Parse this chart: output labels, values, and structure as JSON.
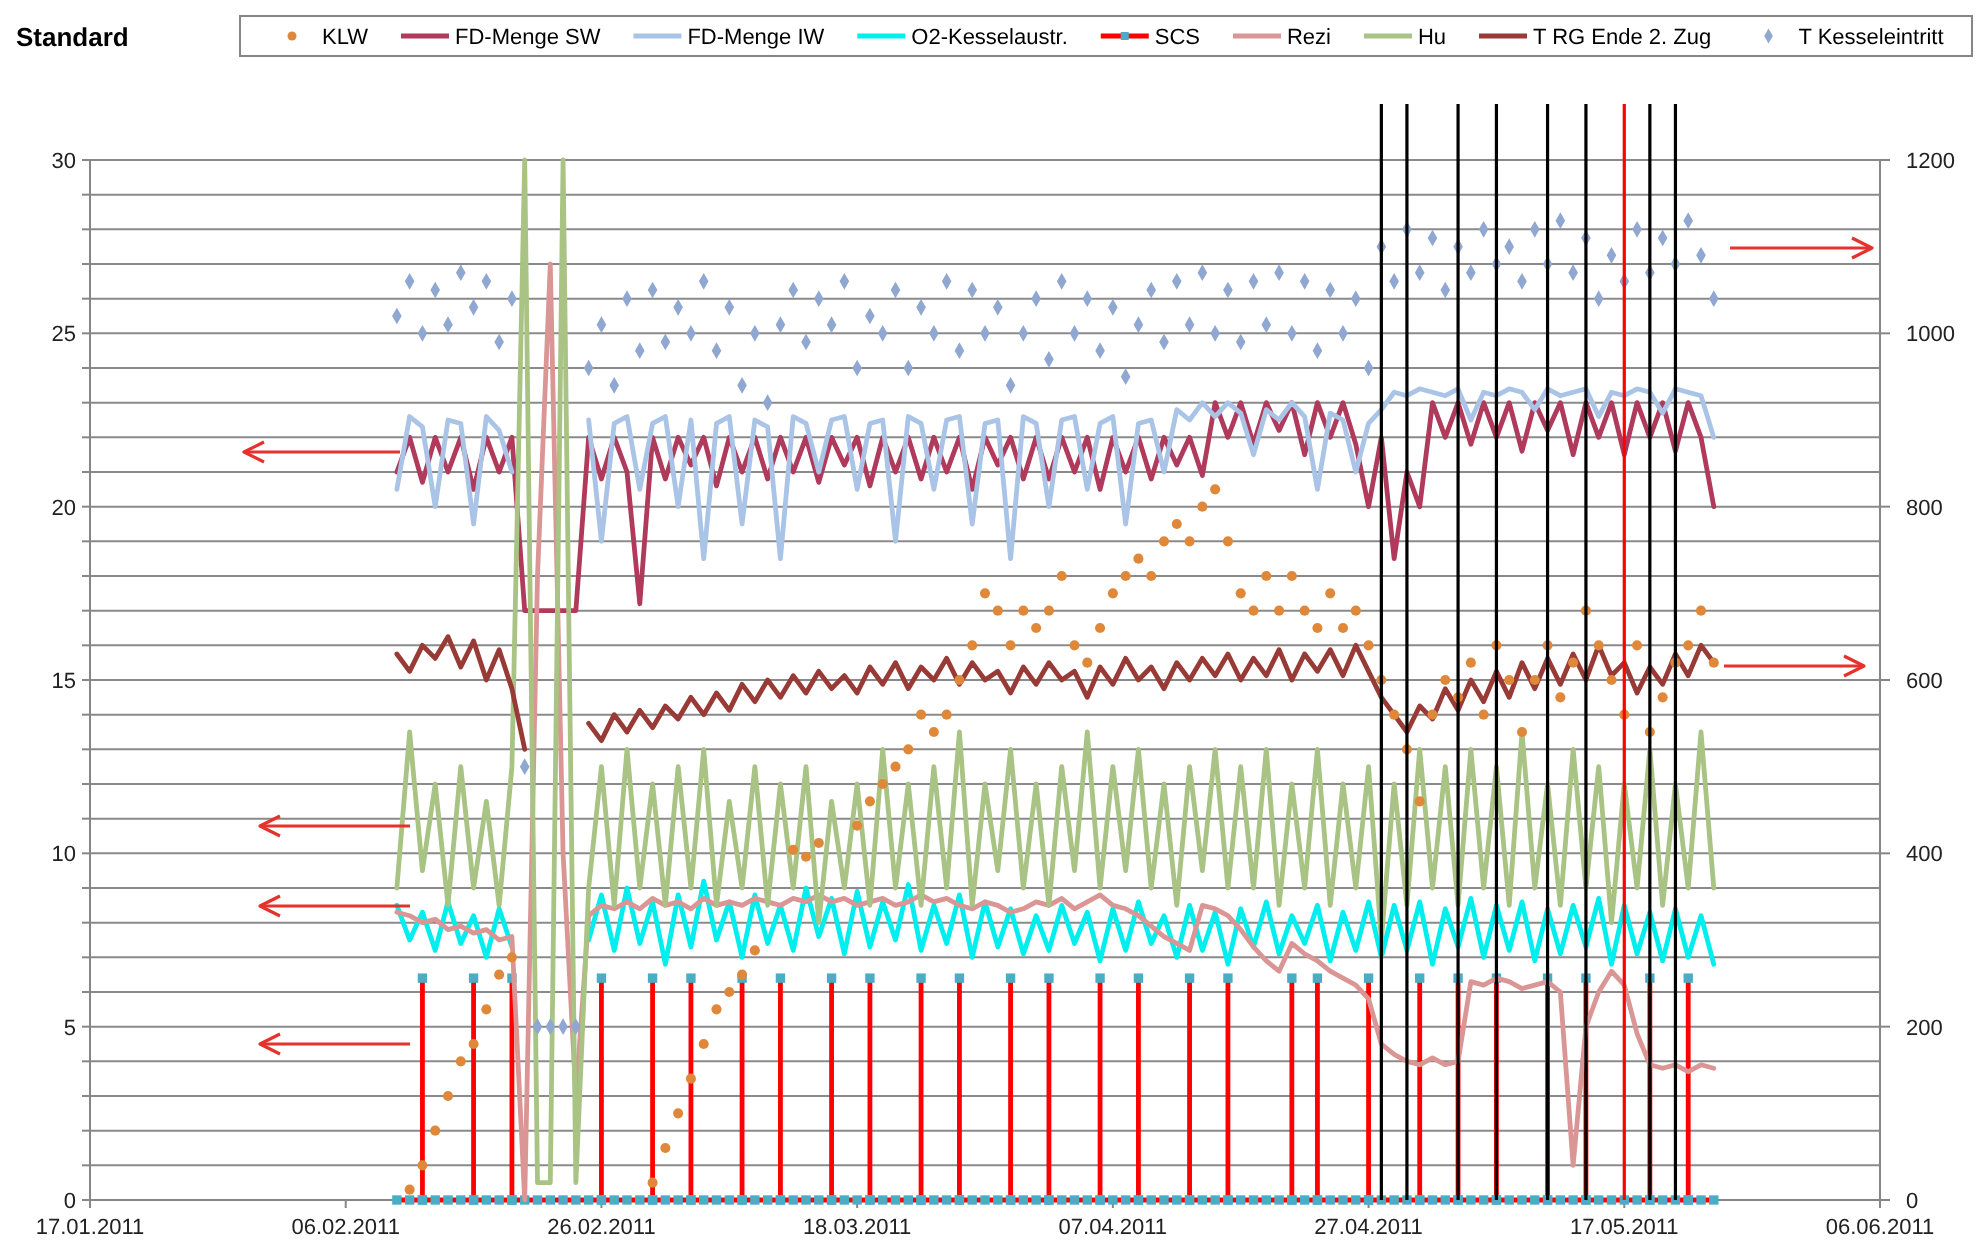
{
  "chart_data": {
    "type": "line",
    "title": "Standard",
    "x": [
      "2011-02-10",
      "2011-02-11",
      "2011-02-12",
      "2011-02-13",
      "2011-02-14",
      "2011-02-15",
      "2011-02-16",
      "2011-02-17",
      "2011-02-18",
      "2011-02-19",
      "2011-02-20",
      "2011-02-21",
      "2011-02-22",
      "2011-02-23",
      "2011-02-24",
      "2011-02-25",
      "2011-02-26",
      "2011-02-27",
      "2011-02-28",
      "2011-03-01",
      "2011-03-02",
      "2011-03-03",
      "2011-03-04",
      "2011-03-05",
      "2011-03-06",
      "2011-03-07",
      "2011-03-08",
      "2011-03-09",
      "2011-03-10",
      "2011-03-11",
      "2011-03-12",
      "2011-03-13",
      "2011-03-14",
      "2011-03-15",
      "2011-03-16",
      "2011-03-17",
      "2011-03-18",
      "2011-03-19",
      "2011-03-20",
      "2011-03-21",
      "2011-03-22",
      "2011-03-23",
      "2011-03-24",
      "2011-03-25",
      "2011-03-26",
      "2011-03-27",
      "2011-03-28",
      "2011-03-29",
      "2011-03-30",
      "2011-03-31",
      "2011-04-01",
      "2011-04-02",
      "2011-04-03",
      "2011-04-04",
      "2011-04-05",
      "2011-04-06",
      "2011-04-07",
      "2011-04-08",
      "2011-04-09",
      "2011-04-10",
      "2011-04-11",
      "2011-04-12",
      "2011-04-13",
      "2011-04-14",
      "2011-04-15",
      "2011-04-16",
      "2011-04-17",
      "2011-04-18",
      "2011-04-19",
      "2011-04-20",
      "2011-04-21",
      "2011-04-22",
      "2011-04-23",
      "2011-04-24",
      "2011-04-25",
      "2011-04-26",
      "2011-04-27",
      "2011-04-28",
      "2011-04-29",
      "2011-04-30",
      "2011-05-01",
      "2011-05-02",
      "2011-05-03",
      "2011-05-04",
      "2011-05-05",
      "2011-05-06",
      "2011-05-07",
      "2011-05-08",
      "2011-05-09",
      "2011-05-10",
      "2011-05-11",
      "2011-05-12",
      "2011-05-13",
      "2011-05-14",
      "2011-05-15",
      "2011-05-16",
      "2011-05-17",
      "2011-05-18",
      "2011-05-19",
      "2011-05-20",
      "2011-05-21",
      "2011-05-22",
      "2011-05-23",
      "2011-05-24"
    ],
    "xlim": [
      "2011-01-17",
      "2011-06-06"
    ],
    "xticks": [
      {
        "value": "2011-01-17",
        "label": "17.01.2011"
      },
      {
        "value": "2011-02-06",
        "label": "06.02.2011"
      },
      {
        "value": "2011-02-26",
        "label": "26.02.2011"
      },
      {
        "value": "2011-03-18",
        "label": "18.03.2011"
      },
      {
        "value": "2011-04-07",
        "label": "07.04.2011"
      },
      {
        "value": "2011-04-27",
        "label": "27.04.2011"
      },
      {
        "value": "2011-05-17",
        "label": "17.05.2011"
      },
      {
        "value": "2011-06-06",
        "label": "06.06.2011"
      }
    ],
    "ylim": [
      0,
      30
    ],
    "yticks": [
      0,
      {
        "value": 1,
        "label": null
      },
      {
        "value": 2,
        "label": null
      },
      {
        "value": 3,
        "label": null
      },
      {
        "value": 4,
        "label": null
      },
      5,
      {
        "value": 6,
        "label": null
      },
      {
        "value": 7,
        "label": null
      },
      {
        "value": 8,
        "label": null
      },
      {
        "value": 9,
        "label": null
      },
      10,
      {
        "value": 11,
        "label": null
      },
      {
        "value": 12,
        "label": null
      },
      {
        "value": 13,
        "label": null
      },
      {
        "value": 14,
        "label": null
      },
      15,
      {
        "value": 16,
        "label": null
      },
      {
        "value": 17,
        "label": null
      },
      {
        "value": 18,
        "label": null
      },
      {
        "value": 19,
        "label": null
      },
      20,
      {
        "value": 21,
        "label": null
      },
      {
        "value": 22,
        "label": null
      },
      {
        "value": 23,
        "label": null
      },
      {
        "value": 24,
        "label": null
      },
      25,
      {
        "value": 26,
        "label": null
      },
      {
        "value": 27,
        "label": null
      },
      {
        "value": 28,
        "label": null
      },
      {
        "value": 29,
        "label": null
      },
      30
    ],
    "y2lim": [
      0,
      1200
    ],
    "y2ticks": [
      0,
      200,
      400,
      600,
      800,
      1000,
      1200
    ],
    "grid": "y",
    "legend": "top",
    "ref_lines": [
      {
        "axis": "x",
        "value": "2011-04-28",
        "color": "#000000"
      },
      {
        "axis": "x",
        "value": "2011-04-30",
        "color": "#000000"
      },
      {
        "axis": "x",
        "value": "2011-05-04",
        "color": "#000000"
      },
      {
        "axis": "x",
        "value": "2011-05-07",
        "color": "#000000"
      },
      {
        "axis": "x",
        "value": "2011-05-11",
        "color": "#000000"
      },
      {
        "axis": "x",
        "value": "2011-05-14",
        "color": "#000000"
      },
      {
        "axis": "x",
        "value": "2011-05-17",
        "color": "#ff0000"
      },
      {
        "axis": "x",
        "value": "2011-05-19",
        "color": "#000000"
      },
      {
        "axis": "x",
        "value": "2011-05-21",
        "color": "#000000"
      }
    ],
    "series": [
      {
        "name": "KLW",
        "type": "scatter",
        "marker": "circle",
        "color": "#e0883a",
        "values": [
          null,
          0.3,
          1,
          2,
          3,
          4,
          4.5,
          5.5,
          6.5,
          7,
          null,
          null,
          null,
          null,
          null,
          null,
          null,
          null,
          null,
          null,
          0.5,
          1.5,
          2.5,
          3.5,
          4.5,
          5.5,
          6,
          6.5,
          7.2,
          null,
          null,
          10.1,
          9.9,
          10.3,
          null,
          null,
          10.8,
          11.5,
          12,
          12.5,
          13,
          14,
          13.5,
          14,
          15,
          16,
          17.5,
          17,
          16,
          17,
          16.5,
          17,
          18,
          16,
          15.5,
          16.5,
          17.5,
          18,
          18.5,
          18,
          19,
          19.5,
          19,
          20,
          20.5,
          19,
          17.5,
          17,
          18,
          17,
          18,
          17,
          16.5,
          17.5,
          16.5,
          17,
          16,
          15,
          14,
          13,
          11.5,
          14,
          15,
          14.5,
          15.5,
          14,
          16,
          15,
          13.5,
          15,
          16,
          14.5,
          15.5,
          17,
          16,
          15,
          14,
          16,
          13.5,
          14.5,
          15.5,
          16,
          17,
          15.5
        ]
      },
      {
        "name": "FD-Menge SW",
        "color": "#b03a5b",
        "values": [
          21,
          22,
          20.7,
          22,
          21,
          22,
          20.5,
          22,
          21,
          22,
          17,
          17,
          17,
          17,
          17,
          22,
          20.8,
          22,
          21,
          17.2,
          22,
          20.8,
          22,
          21.2,
          22,
          20.6,
          22,
          21,
          22,
          20.8,
          22,
          21,
          22,
          20.7,
          22,
          21.2,
          22,
          20.6,
          22,
          21,
          22,
          20.8,
          22,
          21,
          22,
          20.5,
          22,
          21.2,
          22,
          20.8,
          22,
          20.8,
          22,
          21,
          22,
          20.5,
          22,
          21,
          22,
          20.8,
          22,
          21.2,
          22,
          20.9,
          23,
          22,
          23,
          21.8,
          23,
          22.2,
          23,
          21.5,
          23,
          22,
          23,
          21.8,
          20,
          22,
          18.5,
          21,
          20,
          23,
          22,
          23,
          21.8,
          23,
          22,
          23,
          21.6,
          23,
          22.2,
          23,
          21.5,
          23,
          22,
          23,
          21.5,
          23,
          22,
          23,
          21.6,
          23,
          22,
          20
        ]
      },
      {
        "name": "FD-Menge IW",
        "color": "#a9c4e6",
        "values": [
          20.5,
          22.6,
          22.3,
          20,
          22.5,
          22.4,
          19.5,
          22.6,
          22.2,
          21,
          null,
          null,
          null,
          null,
          null,
          22.5,
          19,
          22.4,
          22.6,
          20.5,
          22.4,
          22.6,
          20,
          22.5,
          18.5,
          22.4,
          22.6,
          19.5,
          22.5,
          22.3,
          18.5,
          22.6,
          22.4,
          21,
          22.5,
          22.6,
          20.5,
          22.4,
          22.5,
          19,
          22.6,
          22.4,
          20.5,
          22.5,
          22.6,
          19.5,
          22.4,
          22.5,
          18.5,
          22.6,
          22.4,
          20,
          22.5,
          22.6,
          20.5,
          22.4,
          22.6,
          19.5,
          22.4,
          22.5,
          21,
          22.8,
          22.5,
          23,
          22.6,
          23,
          22.7,
          21.5,
          22.8,
          22.5,
          23,
          22.6,
          20.5,
          22.7,
          22.5,
          21,
          22.4,
          22.8,
          23.3,
          23.2,
          23.4,
          23.3,
          23.2,
          23.4,
          22.5,
          23.3,
          23.2,
          23.4,
          23.3,
          22.8,
          23.4,
          23.2,
          23.3,
          23.4,
          22.6,
          23.3,
          23.2,
          23.4,
          23.3,
          22.7,
          23.4,
          23.3,
          23.2,
          22
        ]
      },
      {
        "name": "O2-Kesselaustr.",
        "color": "#00eeee",
        "values": [
          8.5,
          7.5,
          8.3,
          7.2,
          8.6,
          7.4,
          8.2,
          7,
          8.4,
          7.3,
          null,
          null,
          null,
          null,
          null,
          7.5,
          8.8,
          7.2,
          9,
          7.4,
          8.6,
          6.8,
          8.8,
          7.3,
          9.2,
          7.5,
          8.6,
          7,
          8.8,
          7.4,
          8.5,
          7.2,
          9,
          7.6,
          8.7,
          7.1,
          8.9,
          7.3,
          8.6,
          7.5,
          9.1,
          7.2,
          8.5,
          7.4,
          8.8,
          7,
          8.6,
          7.3,
          8.4,
          7.1,
          8.2,
          7.2,
          8.5,
          7.4,
          8.3,
          6.9,
          8.4,
          7.2,
          8.6,
          7.4,
          8.2,
          7,
          8.5,
          7.2,
          8.3,
          6.8,
          8.4,
          7.3,
          8.6,
          7.1,
          8.2,
          7.4,
          8.5,
          6.9,
          8.3,
          7.2,
          8.6,
          7,
          8.5,
          7.2,
          8.6,
          6.8,
          8.4,
          7.3,
          8.7,
          7,
          8.5,
          7.2,
          8.6,
          6.9,
          8.4,
          7.1,
          8.5,
          7.3,
          8.7,
          6.8,
          8.5,
          7.1,
          8.3,
          6.9,
          8.4,
          7,
          8.2,
          6.8
        ]
      },
      {
        "name": "SCS",
        "color": "#ff0000",
        "marker": "square",
        "x": [
          "2011-02-10",
          "2011-02-11",
          "2011-02-12",
          "2011-02-12",
          "2011-02-12",
          "2011-02-13",
          "2011-02-14",
          "2011-02-15",
          "2011-02-16",
          "2011-02-16",
          "2011-02-16",
          "2011-02-17",
          "2011-02-18",
          "2011-02-19",
          "2011-02-19",
          "2011-02-19",
          "2011-02-20",
          "2011-02-21",
          "2011-02-22",
          "2011-02-23",
          "2011-02-24",
          "2011-02-25",
          "2011-02-26",
          "2011-02-26",
          "2011-02-26",
          "2011-02-27",
          "2011-02-28",
          "2011-03-01",
          "2011-03-02",
          "2011-03-02",
          "2011-03-02",
          "2011-03-03",
          "2011-03-04",
          "2011-03-05",
          "2011-03-05",
          "2011-03-05",
          "2011-03-06",
          "2011-03-07",
          "2011-03-08",
          "2011-03-09",
          "2011-03-09",
          "2011-03-09",
          "2011-03-10",
          "2011-03-11",
          "2011-03-12",
          "2011-03-12",
          "2011-03-12",
          "2011-03-13",
          "2011-03-14",
          "2011-03-15",
          "2011-03-16",
          "2011-03-16",
          "2011-03-16",
          "2011-03-17",
          "2011-03-18",
          "2011-03-19",
          "2011-03-19",
          "2011-03-19",
          "2011-03-20",
          "2011-03-21",
          "2011-03-22",
          "2011-03-23",
          "2011-03-23",
          "2011-03-23",
          "2011-03-24",
          "2011-03-25",
          "2011-03-26",
          "2011-03-26",
          "2011-03-26",
          "2011-03-27",
          "2011-03-28",
          "2011-03-29",
          "2011-03-30",
          "2011-03-30",
          "2011-03-30",
          "2011-03-31",
          "2011-04-01",
          "2011-04-02",
          "2011-04-02",
          "2011-04-02",
          "2011-04-03",
          "2011-04-04",
          "2011-04-05",
          "2011-04-06",
          "2011-04-06",
          "2011-04-06",
          "2011-04-07",
          "2011-04-08",
          "2011-04-09",
          "2011-04-09",
          "2011-04-09",
          "2011-04-10",
          "2011-04-11",
          "2011-04-12",
          "2011-04-13",
          "2011-04-13",
          "2011-04-13",
          "2011-04-14",
          "2011-04-15",
          "2011-04-16",
          "2011-04-16",
          "2011-04-16",
          "2011-04-17",
          "2011-04-18",
          "2011-04-19",
          "2011-04-20",
          "2011-04-21",
          "2011-04-21",
          "2011-04-21",
          "2011-04-22",
          "2011-04-23",
          "2011-04-23",
          "2011-04-23",
          "2011-04-24",
          "2011-04-25",
          "2011-04-26",
          "2011-04-27",
          "2011-04-27",
          "2011-04-27",
          "2011-04-28",
          "2011-04-29",
          "2011-04-30",
          "2011-05-01",
          "2011-05-01",
          "2011-05-01",
          "2011-05-02",
          "2011-05-03",
          "2011-05-04",
          "2011-05-04",
          "2011-05-04",
          "2011-05-05",
          "2011-05-06",
          "2011-05-07",
          "2011-05-07",
          "2011-05-07",
          "2011-05-08",
          "2011-05-09",
          "2011-05-10",
          "2011-05-11",
          "2011-05-11",
          "2011-05-11",
          "2011-05-12",
          "2011-05-13",
          "2011-05-14",
          "2011-05-14",
          "2011-05-14",
          "2011-05-15",
          "2011-05-16",
          "2011-05-17",
          "2011-05-18",
          "2011-05-19",
          "2011-05-19",
          "2011-05-19",
          "2011-05-20",
          "2011-05-21",
          "2011-05-22",
          "2011-05-22",
          "2011-05-22",
          "2011-05-23",
          "2011-05-24"
        ],
        "values": [
          0,
          0,
          0,
          6.4,
          0,
          0,
          0,
          0,
          0,
          6.4,
          0,
          0,
          0,
          0,
          6.4,
          0,
          0,
          0,
          0,
          0,
          0,
          0,
          0,
          6.4,
          0,
          0,
          0,
          0,
          0,
          6.4,
          0,
          0,
          0,
          0,
          6.4,
          0,
          0,
          0,
          0,
          0,
          6.4,
          0,
          0,
          0,
          0,
          6.4,
          0,
          0,
          0,
          0,
          0,
          6.4,
          0,
          0,
          0,
          0,
          6.4,
          0,
          0,
          0,
          0,
          0,
          6.4,
          0,
          0,
          0,
          0,
          6.4,
          0,
          0,
          0,
          0,
          0,
          6.4,
          0,
          0,
          0,
          0,
          6.4,
          0,
          0,
          0,
          0,
          0,
          6.4,
          0,
          0,
          0,
          0,
          6.4,
          0,
          0,
          0,
          0,
          0,
          6.4,
          0,
          0,
          0,
          0,
          6.4,
          0,
          0,
          0,
          0,
          0,
          0,
          6.4,
          0,
          0,
          0,
          6.4,
          0,
          0,
          0,
          0,
          0,
          6.4,
          0,
          0,
          0,
          0,
          0,
          6.4,
          0,
          0,
          0,
          0,
          6.4,
          0,
          0,
          0,
          0,
          6.4,
          0,
          0,
          0,
          0,
          0,
          6.4,
          0,
          0,
          0,
          0,
          6.4,
          0,
          0,
          0,
          0,
          0,
          0,
          6.4,
          0,
          0,
          0,
          0,
          6.4,
          0,
          0,
          0
        ],
        "colors": [
          "#4bacc6",
          "#4bacc6",
          "#4bacc6",
          "#4bacc6",
          "#4bacc6",
          "#4bacc6",
          "#4bacc6",
          "#4bacc6",
          "#4bacc6",
          "#4bacc6",
          "#4bacc6",
          "#4bacc6",
          "#4bacc6",
          "#4bacc6",
          "#4bacc6",
          "#4bacc6",
          "#4bacc6",
          "#4bacc6",
          "#4bacc6",
          "#4bacc6",
          "#4bacc6",
          "#4bacc6",
          "#4bacc6",
          "#4bacc6",
          "#4bacc6",
          "#4bacc6",
          "#4bacc6",
          "#4bacc6",
          "#4bacc6",
          "#4bacc6",
          "#4bacc6",
          "#4bacc6",
          "#4bacc6",
          "#4bacc6",
          "#4bacc6",
          "#4bacc6",
          "#4bacc6",
          "#4bacc6",
          "#4bacc6",
          "#4bacc6",
          "#4bacc6",
          "#4bacc6",
          "#4bacc6",
          "#4bacc6",
          "#4bacc6",
          "#4bacc6",
          "#4bacc6",
          "#4bacc6",
          "#4bacc6",
          "#4bacc6",
          "#4bacc6",
          "#4bacc6",
          "#4bacc6",
          "#4bacc6",
          "#4bacc6",
          "#4bacc6",
          "#4bacc6",
          "#4bacc6",
          "#4bacc6",
          "#4bacc6",
          "#4bacc6",
          "#4bacc6",
          "#4bacc6",
          "#4bacc6",
          "#4bacc6",
          "#4bacc6",
          "#4bacc6",
          "#4bacc6",
          "#4bacc6",
          "#4bacc6",
          "#4bacc6",
          "#4bacc6",
          "#4bacc6",
          "#4bacc6",
          "#4bacc6",
          "#4bacc6",
          "#4bacc6",
          "#4bacc6",
          "#4bacc6",
          "#4bacc6",
          "#4bacc6",
          "#4bacc6",
          "#4bacc6",
          "#4bacc6",
          "#4bacc6",
          "#4bacc6",
          "#4bacc6",
          "#4bacc6",
          "#4bacc6",
          "#4bacc6",
          "#4bacc6",
          "#4bacc6",
          "#4bacc6",
          "#4bacc6",
          "#4bacc6",
          "#4bacc6",
          "#4bacc6",
          "#4bacc6",
          "#4bacc6",
          "#4bacc6",
          "#4bacc6",
          "#4bacc6",
          "#4bacc6",
          "#4bacc6",
          "#4bacc6",
          "#4bacc6",
          "#4bacc6",
          "#4bacc6",
          "#4bacc6",
          "#4bacc6",
          "#4bacc6",
          "#4bacc6",
          "#4bacc6",
          "#4bacc6",
          "#4bacc6",
          "#4bacc6",
          "#4bacc6",
          "#4bacc6",
          "#4bacc6",
          "#4bacc6",
          "#4bacc6",
          "#4bacc6",
          "#4bacc6",
          "#4bacc6",
          "#4bacc6",
          "#4bacc6",
          "#4bacc6",
          "#4bacc6",
          "#4bacc6",
          "#4bacc6",
          "#4bacc6",
          "#4bacc6",
          "#4bacc6",
          "#4bacc6",
          "#4bacc6",
          "#4bacc6",
          "#4bacc6",
          "#4bacc6",
          "#4bacc6",
          "#4bacc6",
          "#4bacc6",
          "#4bacc6",
          "#4bacc6",
          "#4bacc6",
          "#4bacc6",
          "#4bacc6",
          "#4bacc6",
          "#4bacc6",
          "#4bacc6",
          "#4bacc6",
          "#4bacc6",
          "#4bacc6",
          "#4bacc6",
          "#4bacc6",
          "#4bacc6",
          "#4bacc6",
          "#4bacc6",
          "#4bacc6",
          "#4bacc6",
          "#4bacc6"
        ]
      },
      {
        "name": "Rezi",
        "color": "#d99694",
        "values": [
          8.3,
          8.2,
          8,
          8.1,
          7.8,
          7.9,
          7.7,
          7.8,
          7.5,
          7.6,
          0,
          18,
          27,
          10,
          3,
          8.2,
          8.5,
          8.4,
          8.6,
          8.4,
          8.7,
          8.5,
          8.6,
          8.4,
          8.7,
          8.5,
          8.6,
          8.5,
          8.7,
          8.6,
          8.5,
          8.7,
          8.6,
          8.8,
          8.6,
          8.7,
          8.5,
          8.6,
          8.7,
          8.5,
          8.6,
          8.8,
          8.6,
          8.7,
          8.5,
          8.4,
          8.6,
          8.5,
          8.3,
          8.4,
          8.6,
          8.5,
          8.7,
          8.4,
          8.6,
          8.8,
          8.5,
          8.4,
          8.2,
          7.9,
          7.6,
          7.4,
          7.2,
          8.5,
          8.4,
          8.2,
          7.8,
          7.3,
          6.9,
          6.6,
          7.4,
          7.1,
          6.9,
          6.6,
          6.4,
          6.2,
          5.8,
          4.5,
          4.2,
          4,
          3.9,
          4.1,
          3.9,
          4,
          6.3,
          6.2,
          6.4,
          6.3,
          6.1,
          6.2,
          6.3,
          6,
          1,
          5,
          6,
          6.6,
          6.2,
          4.8,
          3.9,
          3.8,
          3.9,
          3.7,
          3.9,
          3.8
        ]
      },
      {
        "name": "Hu",
        "color": "#a8c384",
        "values": [
          9,
          13.5,
          9.5,
          12,
          8.5,
          12.5,
          9,
          11.5,
          8.5,
          12.5,
          30,
          0.5,
          0.5,
          30,
          0.5,
          9,
          12.5,
          8.5,
          13,
          9,
          12,
          8.5,
          12.5,
          9,
          13,
          8.5,
          11.5,
          9,
          12.5,
          8.5,
          12,
          9,
          12.5,
          8,
          11.5,
          9,
          12,
          8.5,
          13,
          9,
          12,
          8.5,
          12.5,
          9,
          13.5,
          8.5,
          12,
          9.5,
          13,
          9,
          12,
          8.5,
          12.5,
          9.5,
          13.5,
          9,
          12.5,
          9.5,
          13,
          9,
          12,
          8.5,
          12.5,
          9.5,
          13,
          9,
          12.5,
          9,
          13,
          8.5,
          12,
          9,
          13,
          8.5,
          12,
          9,
          12.5,
          7.5,
          12,
          8.5,
          13,
          9,
          12.5,
          8.5,
          13,
          9,
          12.5,
          8.5,
          13.5,
          9,
          12,
          8.5,
          13,
          9,
          12.5,
          8,
          12,
          9,
          13,
          8.5,
          12,
          9,
          13.5,
          9
        ]
      },
      {
        "name": "T RG Ende 2. Zug",
        "color": "#983a36",
        "axis": "y2",
        "values": [
          630,
          610,
          640,
          625,
          650,
          615,
          645,
          600,
          635,
          590,
          520,
          null,
          null,
          null,
          null,
          550,
          530,
          560,
          540,
          565,
          545,
          570,
          555,
          580,
          560,
          585,
          565,
          595,
          575,
          600,
          580,
          605,
          585,
          610,
          590,
          605,
          585,
          615,
          595,
          620,
          590,
          615,
          600,
          625,
          595,
          620,
          600,
          610,
          585,
          615,
          595,
          620,
          600,
          610,
          580,
          615,
          595,
          625,
          600,
          615,
          590,
          620,
          600,
          625,
          605,
          630,
          600,
          625,
          605,
          635,
          600,
          630,
          610,
          635,
          605,
          640,
          610,
          580,
          560,
          540,
          570,
          555,
          590,
          565,
          600,
          575,
          610,
          580,
          620,
          590,
          625,
          595,
          630,
          600,
          640,
          605,
          620,
          585,
          615,
          595,
          630,
          605,
          640,
          620
        ]
      },
      {
        "name": "T Kesseleintritt",
        "type": "scatter",
        "marker": "diamond",
        "color": "#8fa7d1",
        "axis": "y2",
        "values": [
          1020,
          1060,
          1000,
          1050,
          1010,
          1070,
          1030,
          1060,
          990,
          1040,
          500,
          200,
          200,
          200,
          200,
          960,
          1010,
          940,
          1040,
          980,
          1050,
          990,
          1030,
          1000,
          1060,
          980,
          1030,
          940,
          1000,
          920,
          1010,
          1050,
          990,
          1040,
          1010,
          1060,
          960,
          1020,
          1000,
          1050,
          960,
          1030,
          1000,
          1060,
          980,
          1050,
          1000,
          1030,
          940,
          1000,
          1040,
          970,
          1060,
          1000,
          1040,
          980,
          1030,
          950,
          1010,
          1050,
          990,
          1060,
          1010,
          1070,
          1000,
          1050,
          990,
          1060,
          1010,
          1070,
          1000,
          1060,
          980,
          1050,
          1000,
          1040,
          960,
          1100,
          1060,
          1120,
          1070,
          1110,
          1050,
          1100,
          1070,
          1120,
          1080,
          1100,
          1060,
          1120,
          1080,
          1130,
          1070,
          1110,
          1040,
          1090,
          1060,
          1120,
          1070,
          1110,
          1080,
          1130,
          1090,
          1040
        ]
      }
    ]
  }
}
